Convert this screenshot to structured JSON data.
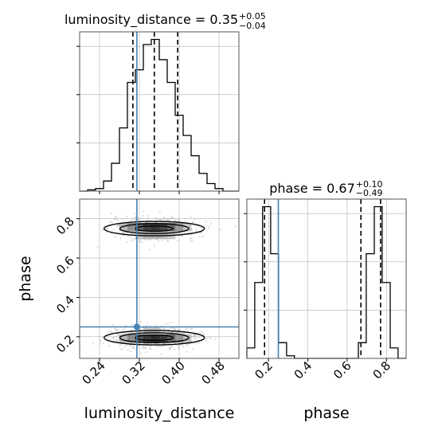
{
  "chart_data": [
    {
      "type": "histogram",
      "panel": "top-left",
      "title_param": "luminosity_distance",
      "title_value": "0.35",
      "title_upper": "+0.05",
      "title_lower": "−0.04",
      "xlim": [
        0.2,
        0.52
      ],
      "bin_edges": [
        0.2,
        0.216,
        0.232,
        0.248,
        0.264,
        0.28,
        0.296,
        0.312,
        0.328,
        0.344,
        0.36,
        0.376,
        0.392,
        0.408,
        0.424,
        0.44,
        0.456,
        0.472,
        0.488,
        0.504,
        0.52
      ],
      "counts": [
        0,
        0.5,
        1,
        4,
        11,
        25,
        43,
        48,
        58,
        60,
        52,
        43,
        30,
        22,
        14,
        7,
        3,
        1,
        0,
        0
      ],
      "quantiles": [
        0.307,
        0.35,
        0.397
      ],
      "truth": 0.315,
      "grid": true
    },
    {
      "type": "scatter-density",
      "panel": "bottom-left",
      "xlabel": "luminosity_distance",
      "ylabel": "phase",
      "xlim": [
        0.2,
        0.52
      ],
      "ylim": [
        0.09,
        0.9
      ],
      "xticks": [
        "0.24",
        "0.32",
        "0.40",
        "0.48"
      ],
      "xtick_values": [
        0.24,
        0.32,
        0.4,
        0.48
      ],
      "yticks": [
        "0.2",
        "0.4",
        "0.6",
        "0.8"
      ],
      "ytick_values": [
        0.2,
        0.4,
        0.6,
        0.8
      ],
      "modes": [
        {
          "x": 0.35,
          "y": 0.75,
          "sx": 0.042,
          "sy": 0.038
        },
        {
          "x": 0.35,
          "y": 0.195,
          "sx": 0.042,
          "sy": 0.038
        }
      ],
      "truth": {
        "x": 0.315,
        "y": 0.25
      },
      "grid": true
    },
    {
      "type": "histogram",
      "panel": "bottom-right",
      "title_param": "phase",
      "title_value": "0.67",
      "title_upper": "+0.10",
      "title_lower": "−0.49",
      "xlabel": "phase",
      "xlim": [
        0.09,
        0.9
      ],
      "xticks": [
        "0.2",
        "0.4",
        "0.6",
        "0.8"
      ],
      "xtick_values": [
        0.2,
        0.4,
        0.6,
        0.8
      ],
      "bin_edges": [
        0.09,
        0.13,
        0.17,
        0.211,
        0.251,
        0.292,
        0.332,
        0.373,
        0.413,
        0.454,
        0.495,
        0.535,
        0.576,
        0.616,
        0.657,
        0.697,
        0.738,
        0.778,
        0.819,
        0.859,
        0.9
      ],
      "counts": [
        4,
        29,
        58,
        40,
        6,
        1,
        0,
        0,
        0,
        0,
        0,
        0,
        0,
        0,
        6,
        40,
        58,
        29,
        4,
        0
      ],
      "quantiles": [
        0.18,
        0.67,
        0.77
      ],
      "truth": 0.25,
      "grid": true
    }
  ],
  "colors": {
    "truth": "#4682b4",
    "hist": "#000000",
    "grid": "#b0b0b0",
    "frame": "#555555"
  }
}
